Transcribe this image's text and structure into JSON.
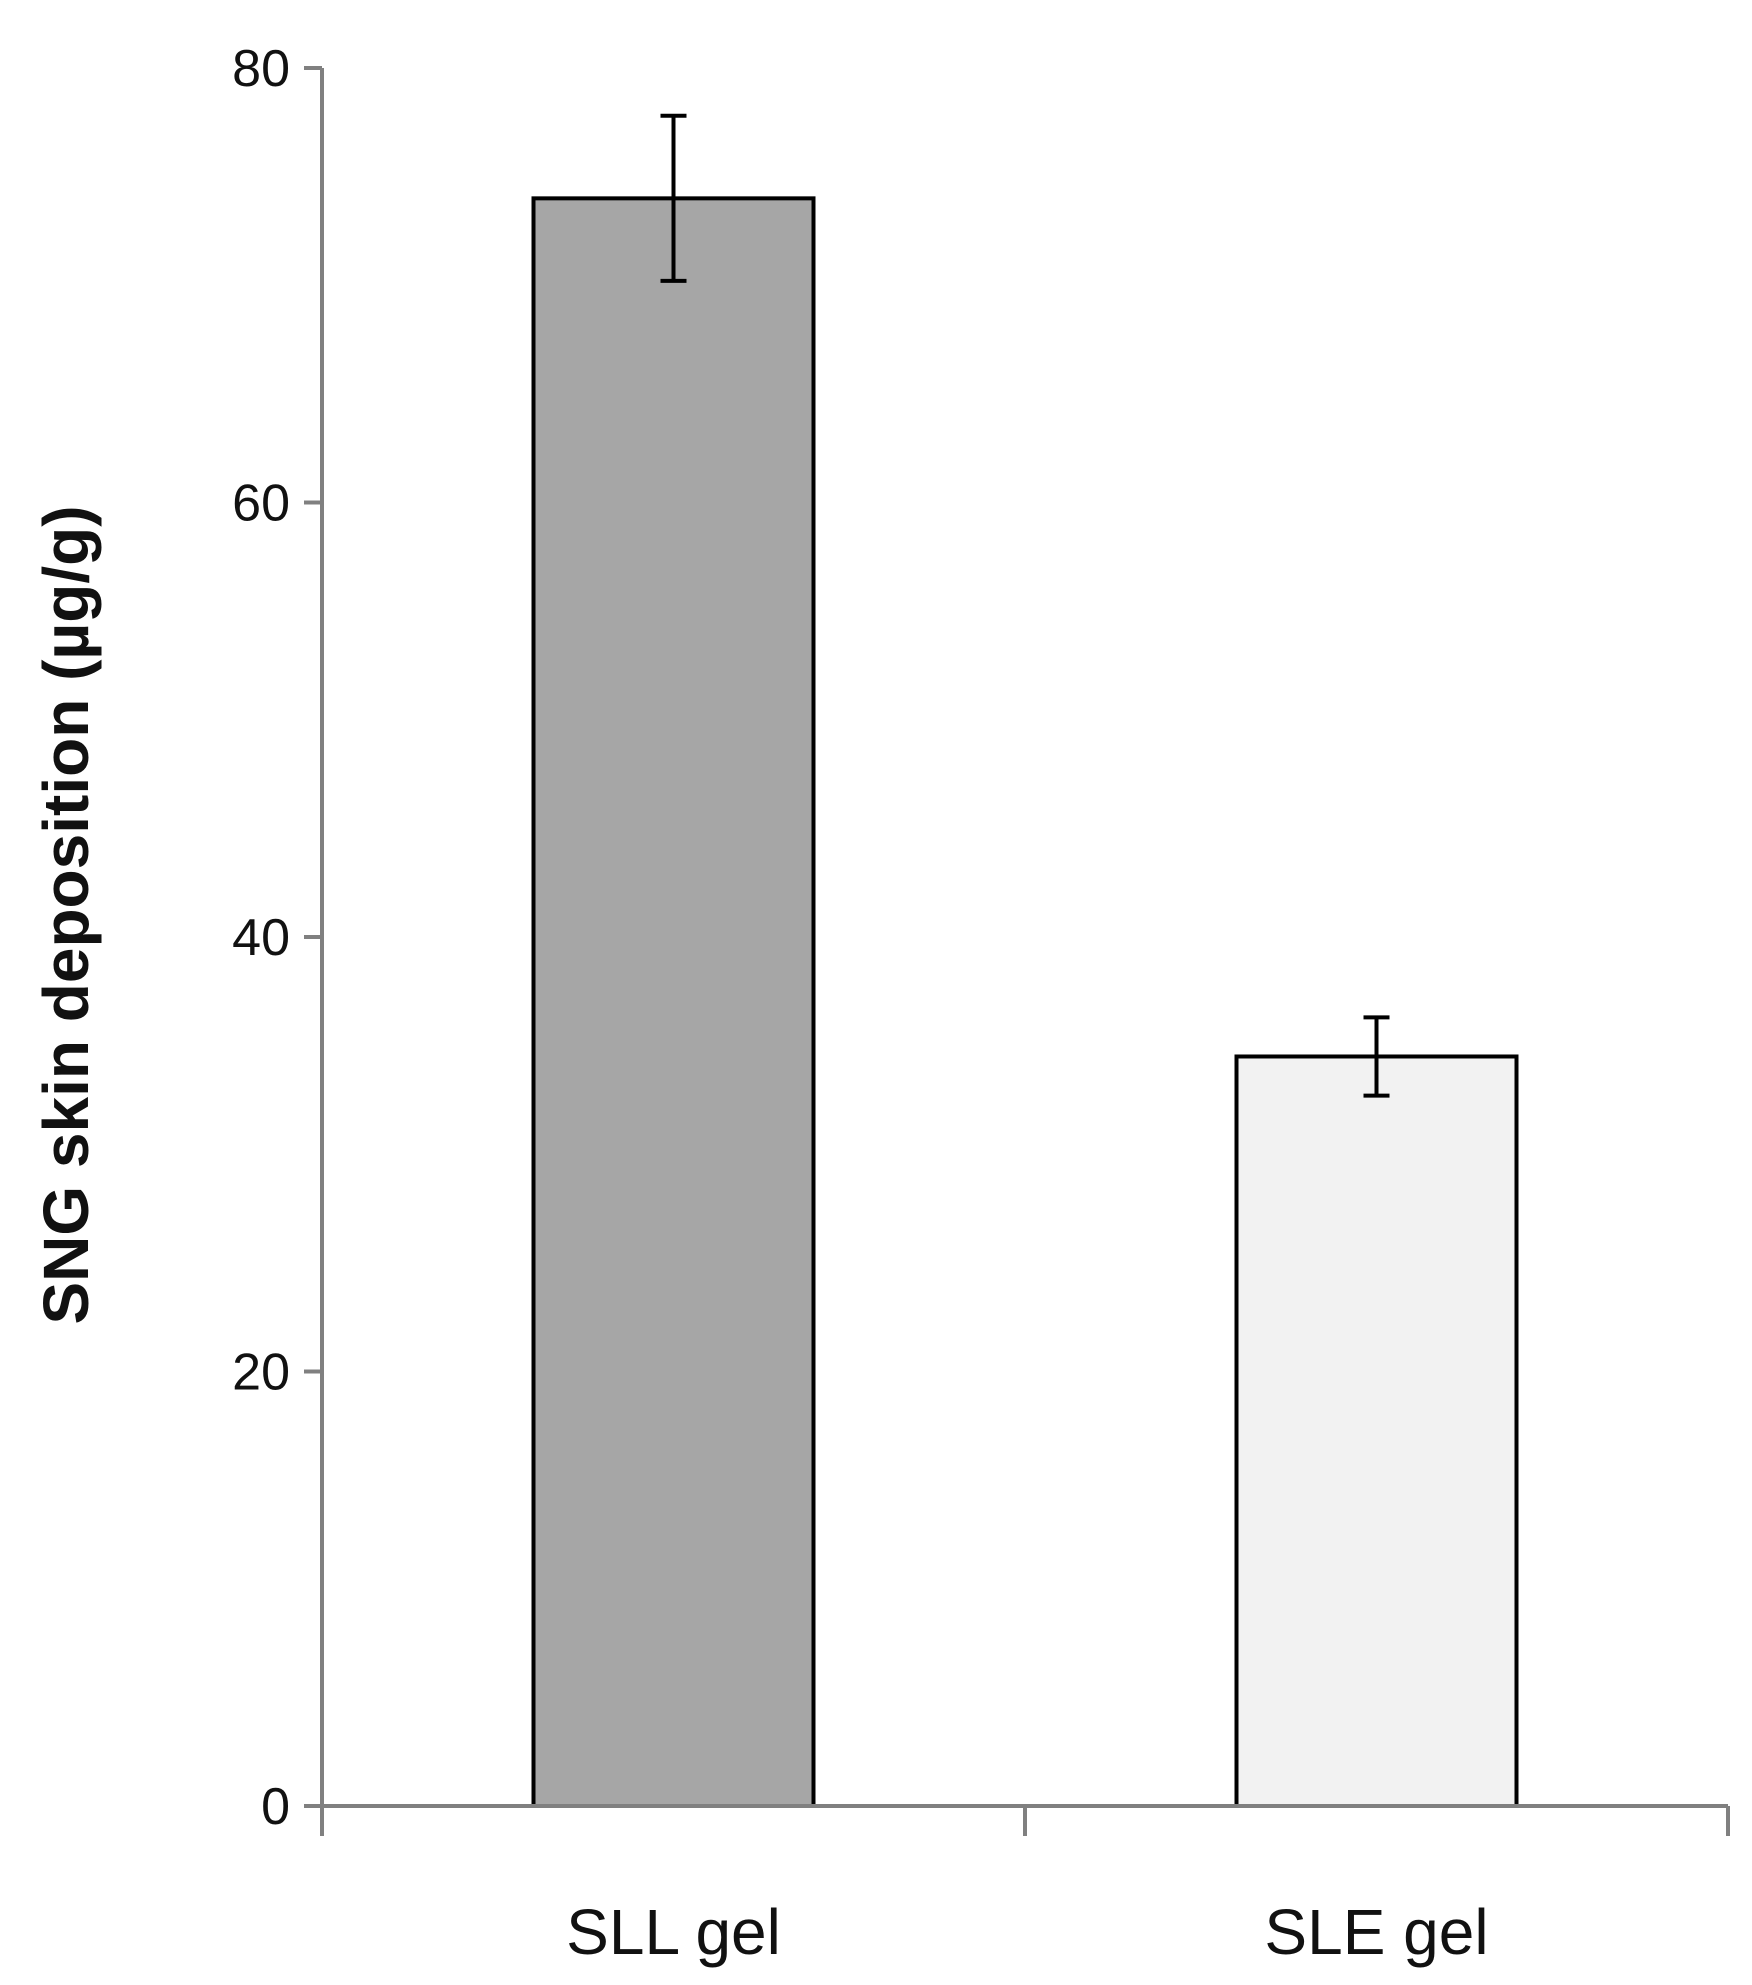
{
  "chart_data": {
    "type": "bar",
    "title": "",
    "xlabel": "",
    "ylabel": "SNG skin deposition (µg/g)",
    "categories": [
      "SLL gel",
      "SLE gel"
    ],
    "values": [
      74,
      34.5
    ],
    "errors": [
      3.8,
      1.8
    ],
    "ylim": [
      0,
      80
    ],
    "yticks": [
      "0",
      "20",
      "40",
      "60",
      "80"
    ],
    "grid": false,
    "legend": "none",
    "colors": {
      "bars": [
        "#a6a6a6",
        "#f2f2f2"
      ],
      "bar_outline": "#000000",
      "axis": "#808080",
      "error_bar": "#000000"
    }
  }
}
